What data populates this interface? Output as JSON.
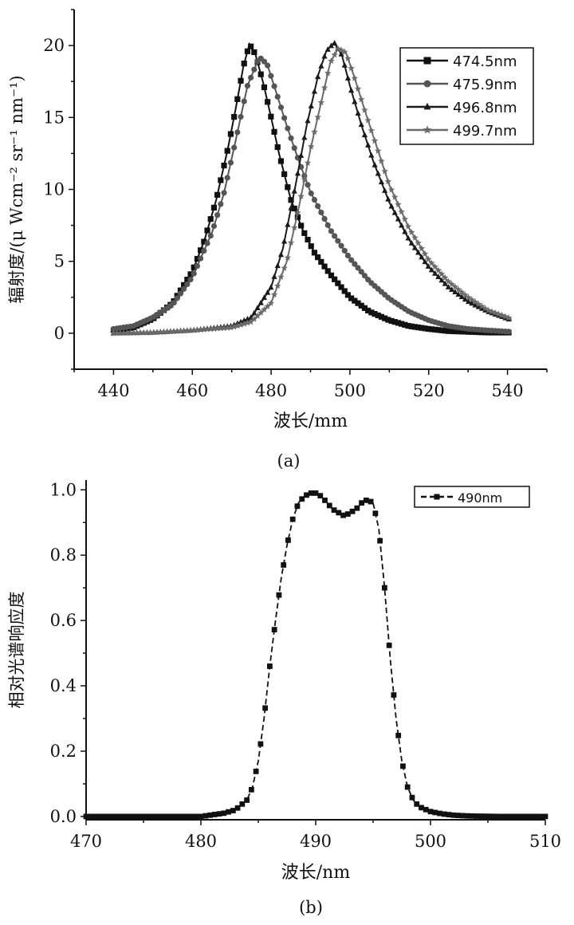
{
  "chart_data": [
    {
      "type": "line",
      "panel_label": "(a)",
      "xlabel": "波长/mm",
      "ylabel": "辐射度/(μ Wcm⁻² sr⁻¹ nm⁻¹)",
      "xlim": [
        430,
        550
      ],
      "ylim": [
        -2.5,
        22.5
      ],
      "xticks": [
        440,
        460,
        480,
        500,
        520,
        540
      ],
      "yticks": [
        0,
        5,
        10,
        15,
        20
      ],
      "legend_position": "top-right",
      "series": [
        {
          "name": "474.5nm",
          "color": "#111111",
          "marker": "square",
          "peak": 474.5,
          "x": [
            440,
            445,
            450,
            455,
            460,
            463,
            466,
            469,
            471,
            473,
            474.5,
            476,
            478,
            480,
            482,
            485,
            488,
            491,
            495,
            500,
            505,
            510,
            515,
            520,
            525,
            530,
            535,
            541
          ],
          "y": [
            0.2,
            0.4,
            1.0,
            2.1,
            4.3,
            6.4,
            9.2,
            12.8,
            15.6,
            18.6,
            20.1,
            19.4,
            17.4,
            15.0,
            12.5,
            9.3,
            7.2,
            5.6,
            4.1,
            2.5,
            1.5,
            0.9,
            0.5,
            0.3,
            0.15,
            0.1,
            0.05,
            0.05
          ]
        },
        {
          "name": "475.9nm",
          "color": "#555555",
          "marker": "circle",
          "peak": 475.9,
          "x": [
            440,
            445,
            450,
            455,
            460,
            465,
            468,
            471,
            474,
            477,
            479,
            481,
            484,
            487,
            490,
            495,
            500,
            505,
            510,
            515,
            520,
            525,
            530,
            535,
            541
          ],
          "y": [
            0.3,
            0.5,
            1.1,
            2.0,
            3.9,
            7.0,
            9.7,
            13.4,
            17.2,
            19.2,
            18.7,
            17.0,
            14.4,
            12.0,
            9.8,
            7.2,
            5.2,
            3.6,
            2.4,
            1.5,
            0.9,
            0.5,
            0.3,
            0.2,
            0.1
          ]
        },
        {
          "name": "496.8nm",
          "color": "#1a1a1a",
          "marker": "triangle",
          "peak": 496.8,
          "x": [
            440,
            450,
            460,
            470,
            475,
            480,
            483,
            486,
            489,
            492,
            494,
            496,
            498,
            500,
            503,
            506,
            510,
            515,
            520,
            525,
            530,
            535,
            541
          ],
          "y": [
            0.0,
            0.05,
            0.2,
            0.5,
            1.1,
            3.2,
            5.9,
            10.0,
            14.4,
            18.0,
            19.6,
            20.2,
            19.3,
            17.2,
            14.4,
            11.9,
            9.1,
            6.5,
            4.6,
            3.2,
            2.2,
            1.5,
            0.9
          ]
        },
        {
          "name": "499.7nm",
          "color": "#6a6a6a",
          "marker": "star",
          "peak": 499.7,
          "x": [
            440,
            450,
            460,
            470,
            475,
            480,
            484,
            487,
            490,
            493,
            495,
            497,
            499,
            501,
            504,
            507,
            510,
            515,
            520,
            525,
            530,
            535,
            541
          ],
          "y": [
            0.0,
            0.05,
            0.2,
            0.4,
            0.8,
            2.1,
            5.0,
            8.7,
            12.8,
            16.4,
            18.8,
            19.8,
            19.5,
            17.9,
            15.3,
            12.8,
            10.3,
            7.3,
            5.1,
            3.6,
            2.5,
            1.6,
            1.0
          ]
        }
      ]
    },
    {
      "type": "line",
      "panel_label": "(b)",
      "xlabel": "波长/nm",
      "ylabel": "相对光谱响应度",
      "xlim": [
        470,
        510
      ],
      "ylim": [
        -0.01,
        1.03
      ],
      "xticks": [
        470,
        480,
        490,
        500,
        510
      ],
      "yticks": [
        0.0,
        0.2,
        0.4,
        0.6,
        0.8,
        1.0
      ],
      "legend_position": "top-right",
      "series": [
        {
          "name": "490nm",
          "color": "#111111",
          "marker": "square",
          "x": [
            470,
            472,
            474,
            476,
            478,
            480,
            481,
            482,
            483,
            484,
            484.5,
            485,
            485.5,
            486,
            486.5,
            487,
            487.5,
            488,
            488.5,
            489,
            489.5,
            490,
            490.5,
            491,
            491.5,
            492,
            492.5,
            493,
            493.5,
            494,
            494.5,
            495,
            495.5,
            496,
            496.5,
            497,
            497.5,
            498,
            498.5,
            499,
            500,
            501,
            502,
            503,
            504,
            506,
            508,
            510
          ],
          "y": [
            0.0,
            0.0,
            0.0,
            0.0,
            0.0,
            0.0,
            0.005,
            0.01,
            0.02,
            0.05,
            0.09,
            0.17,
            0.3,
            0.46,
            0.6,
            0.73,
            0.83,
            0.91,
            0.96,
            0.98,
            0.99,
            0.99,
            0.98,
            0.96,
            0.94,
            0.93,
            0.92,
            0.93,
            0.94,
            0.96,
            0.97,
            0.96,
            0.88,
            0.7,
            0.48,
            0.3,
            0.17,
            0.09,
            0.05,
            0.03,
            0.015,
            0.008,
            0.004,
            0.002,
            0.001,
            0.0,
            0.0,
            0.0
          ]
        }
      ]
    }
  ]
}
